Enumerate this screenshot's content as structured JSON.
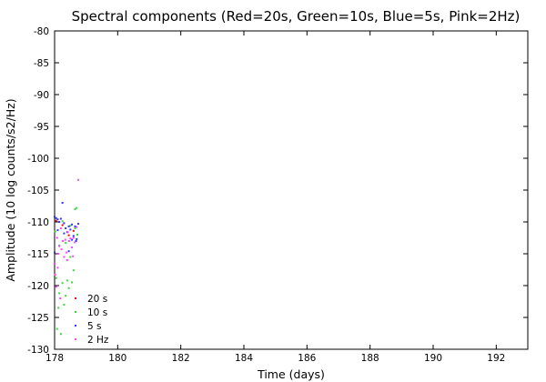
{
  "chart_data": {
    "type": "scatter",
    "title": "Spectral components (Red=20s, Green=10s, Blue=5s, Pink=2Hz)",
    "xlabel": "Time (days)",
    "ylabel": "Amplitude (10 log counts/s2/Hz)",
    "xlim": [
      178,
      193
    ],
    "ylim": [
      -130,
      -80
    ],
    "xticks": [
      178,
      180,
      182,
      184,
      186,
      188,
      190,
      192
    ],
    "yticks": [
      -80,
      -85,
      -90,
      -95,
      -100,
      -105,
      -110,
      -115,
      -120,
      -125,
      -130
    ],
    "grid": false,
    "legend_position": "bottom-left",
    "series": [
      {
        "name": "20 s",
        "color": "#ff0000",
        "points": [
          [
            178.05,
            -109.8
          ],
          [
            178.25,
            -110.5
          ],
          [
            178.45,
            -112.1
          ],
          [
            178.6,
            -111.4
          ]
        ]
      },
      {
        "name": "10 s",
        "color": "#33dd33",
        "points": [
          [
            178.02,
            -111.5
          ],
          [
            178.05,
            -118.8
          ],
          [
            178.08,
            -126.8
          ],
          [
            178.12,
            -123.5
          ],
          [
            178.15,
            -121.2
          ],
          [
            178.2,
            -127.6
          ],
          [
            178.25,
            -119.6
          ],
          [
            178.3,
            -123.0
          ],
          [
            178.35,
            -121.6
          ],
          [
            178.4,
            -119.2
          ],
          [
            178.45,
            -120.4
          ],
          [
            178.5,
            -115.5
          ],
          [
            178.55,
            -119.5
          ],
          [
            178.6,
            -117.6
          ],
          [
            178.65,
            -111.0
          ],
          [
            178.7,
            -107.8
          ],
          [
            178.72,
            -112.0
          ],
          [
            178.15,
            -113.7
          ],
          [
            178.35,
            -113.3
          ],
          [
            178.5,
            -110.6
          ],
          [
            178.65,
            -108.0
          ],
          [
            178.25,
            -109.9
          ]
        ]
      },
      {
        "name": "5 s",
        "color": "#3333ff",
        "points": [
          [
            178.0,
            -109.2
          ],
          [
            178.05,
            -109.4
          ],
          [
            178.1,
            -109.6
          ],
          [
            178.15,
            -110.0
          ],
          [
            178.2,
            -109.5
          ],
          [
            178.25,
            -107.0
          ],
          [
            178.3,
            -110.2
          ],
          [
            178.35,
            -111.0
          ],
          [
            178.4,
            -111.6
          ],
          [
            178.45,
            -110.7
          ],
          [
            178.5,
            -111.2
          ],
          [
            178.55,
            -110.4
          ],
          [
            178.6,
            -112.2
          ],
          [
            178.65,
            -110.7
          ],
          [
            178.7,
            -112.7
          ],
          [
            178.75,
            -110.3
          ],
          [
            178.0,
            -114.8
          ],
          [
            178.1,
            -111.3
          ],
          [
            178.3,
            -111.8
          ],
          [
            178.45,
            -114.6
          ],
          [
            178.55,
            -112.8
          ],
          [
            178.68,
            -113.0
          ]
        ]
      },
      {
        "name": "2 Hz",
        "color": "#ff44ff",
        "points": [
          [
            178.0,
            -116.6
          ],
          [
            178.02,
            -118.3
          ],
          [
            178.05,
            -120.2
          ],
          [
            178.08,
            -112.5
          ],
          [
            178.12,
            -115.0
          ],
          [
            178.15,
            -113.8
          ],
          [
            178.18,
            -122.0
          ],
          [
            178.22,
            -114.3
          ],
          [
            178.26,
            -113.0
          ],
          [
            178.3,
            -115.5
          ],
          [
            178.34,
            -112.8
          ],
          [
            178.38,
            -114.8
          ],
          [
            178.42,
            -111.6
          ],
          [
            178.46,
            -113.0
          ],
          [
            178.5,
            -112.6
          ],
          [
            178.55,
            -114.0
          ],
          [
            178.6,
            -112.5
          ],
          [
            178.64,
            -113.2
          ],
          [
            178.7,
            -110.8
          ],
          [
            178.75,
            -103.4
          ],
          [
            178.1,
            -117.2
          ],
          [
            178.4,
            -116.0
          ],
          [
            178.58,
            -115.4
          ],
          [
            178.2,
            -111.0
          ]
        ]
      }
    ]
  }
}
